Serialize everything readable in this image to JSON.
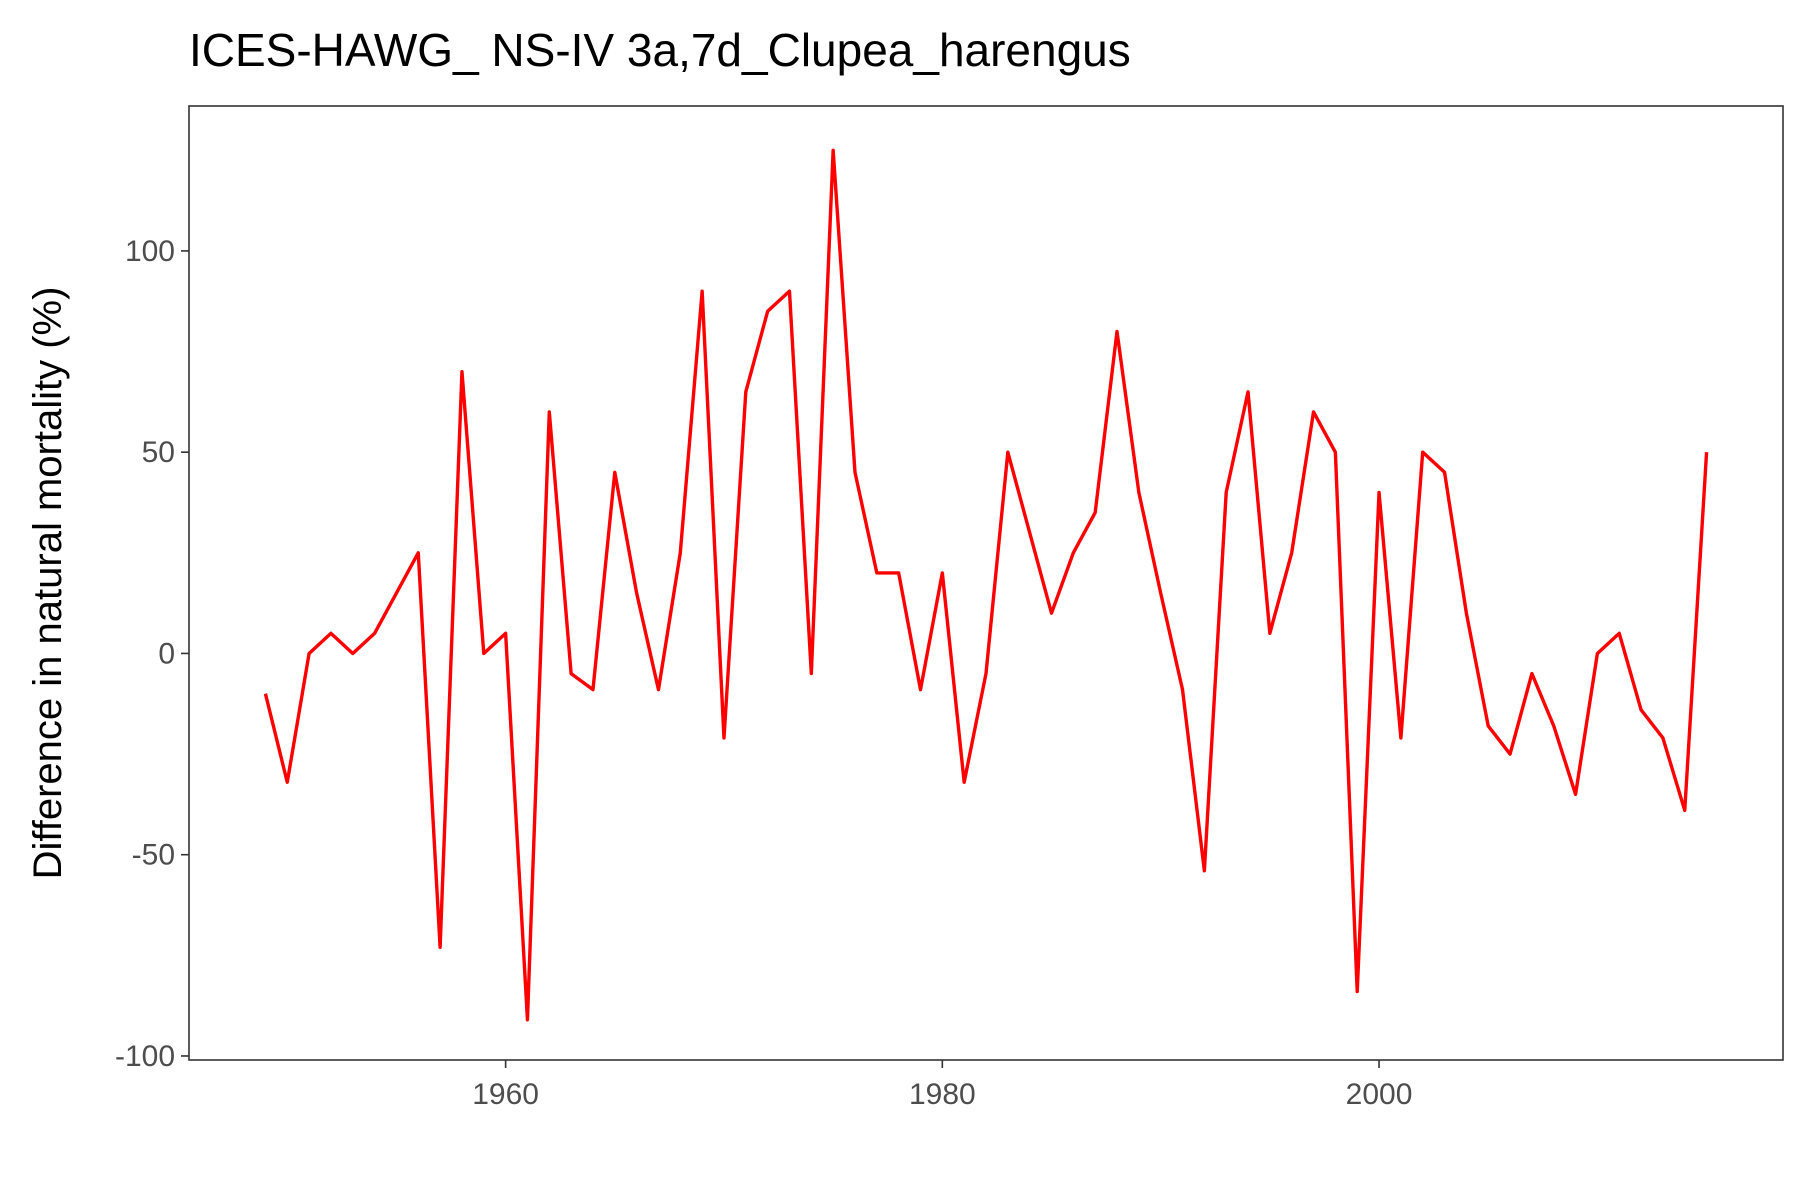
{
  "chart_data": {
    "type": "line",
    "title": "ICES-HAWG_ NS-IV 3a,7d_Clupea_harengus",
    "xlabel": "",
    "ylabel": "Difference in natural mortality (%)",
    "xlim": [
      1945.5,
      2018.5
    ],
    "ylim": [
      -101,
      136
    ],
    "x_ticks": [
      1960,
      1980,
      2000
    ],
    "x_tick_labels": [
      "1960",
      "1980",
      "2000"
    ],
    "y_ticks": [
      -100,
      -50,
      0,
      50,
      100
    ],
    "y_tick_labels": [
      "-100",
      "-50",
      "0",
      "50",
      "100"
    ],
    "grid": false,
    "legend": "none",
    "line_color": "#ff0000",
    "series": [
      {
        "x": [
          1949,
          1950,
          1951,
          1952,
          1953,
          1954,
          1955,
          1956,
          1957,
          1958,
          1959,
          1960,
          1961,
          1962,
          1963,
          1964,
          1965,
          1966,
          1967,
          1968,
          1969,
          1970,
          1971,
          1972,
          1973,
          1974,
          1975,
          1976,
          1977,
          1978,
          1979,
          1980,
          1981,
          1982,
          1983,
          1984,
          1985,
          1986,
          1987,
          1988,
          1989,
          1990,
          1991,
          1992,
          1993,
          1994,
          1995,
          1996,
          1997,
          1998,
          1999,
          2000,
          2001,
          2002,
          2003,
          2004,
          2005,
          2006,
          2007,
          2008,
          2009,
          2010,
          2011,
          2012,
          2013,
          2014,
          2015
        ],
        "values": [
          -10,
          -32,
          0,
          5,
          0,
          5,
          15,
          25,
          -73,
          70,
          0,
          5,
          -91,
          60,
          -5,
          -9,
          45,
          15,
          -9,
          25,
          90,
          -21,
          65,
          85,
          90,
          -5,
          125,
          45,
          20,
          20,
          -9,
          20,
          -32,
          -5,
          50,
          30,
          10,
          25,
          35,
          80,
          40,
          15,
          -9,
          -54,
          40,
          65,
          5,
          25,
          60,
          50,
          -84,
          40,
          -21,
          50,
          45,
          10,
          -18,
          -25,
          -5,
          -18,
          -35,
          0,
          5,
          -14,
          -21,
          -39,
          50
        ]
      }
    ]
  }
}
